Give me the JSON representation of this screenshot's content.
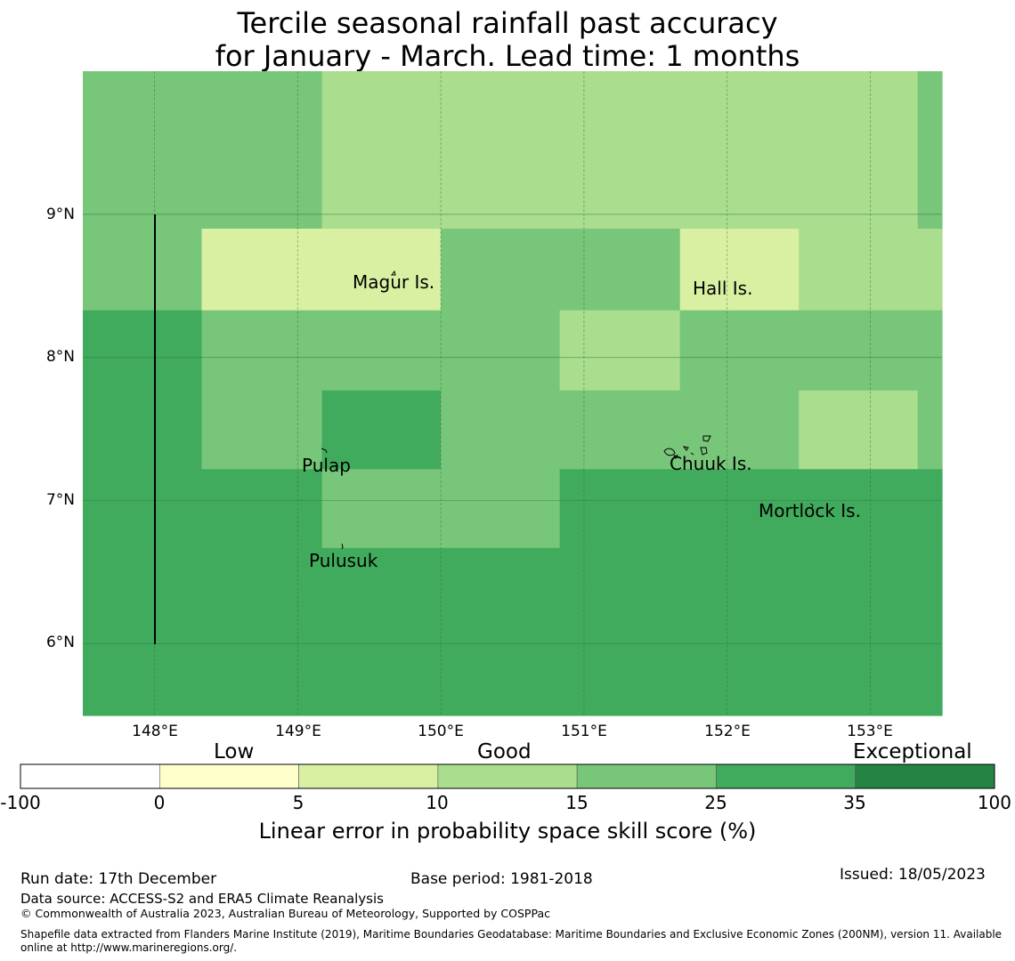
{
  "title_line1": "Tercile seasonal rainfall past accuracy",
  "title_line2": "for January - March. Lead time: 1 months",
  "map": {
    "lat_labels": [
      "9°N",
      "8°N",
      "7°N",
      "6°N"
    ],
    "lon_labels": [
      "148°E",
      "149°E",
      "150°E",
      "151°E",
      "152°E",
      "153°E"
    ],
    "places": {
      "magur": "Magur Is.",
      "hall": "Hall Is.",
      "pulap": "Pulap",
      "chuuk": "Chuuk Is.",
      "mortlock": "Mortlock Is.",
      "pulusuk": "Pulusuk"
    },
    "skill_grid": {
      "description_rows_north_to_south": true,
      "palette": {
        "A": "#aadd8e",
        "B": "#78c679",
        "C": "#41ab5d",
        "D": "#d9f0a3"
      },
      "rows": [
        {
          "lat_top": 10.0,
          "lat_bottom": 8.9,
          "segments": [
            [
              147.5,
              149.17,
              "B"
            ],
            [
              149.17,
              153.33,
              "A"
            ],
            [
              153.33,
              153.5,
              "B"
            ]
          ]
        },
        {
          "lat_top": 8.9,
          "lat_bottom": 8.33,
          "segments": [
            [
              147.5,
              148.33,
              "B"
            ],
            [
              148.33,
              150.0,
              "D"
            ],
            [
              150.0,
              151.67,
              "B"
            ],
            [
              151.67,
              152.5,
              "D"
            ],
            [
              152.5,
              153.5,
              "A"
            ]
          ]
        },
        {
          "lat_top": 8.33,
          "lat_bottom": 7.77,
          "segments": [
            [
              147.5,
              148.33,
              "C"
            ],
            [
              148.33,
              150.83,
              "B"
            ],
            [
              150.83,
              151.67,
              "A"
            ],
            [
              151.67,
              153.5,
              "B"
            ]
          ]
        },
        {
          "lat_top": 7.77,
          "lat_bottom": 7.22,
          "segments": [
            [
              147.5,
              148.33,
              "C"
            ],
            [
              148.33,
              149.17,
              "B"
            ],
            [
              149.17,
              150.0,
              "C"
            ],
            [
              150.0,
              152.5,
              "B"
            ],
            [
              152.5,
              153.33,
              "A"
            ],
            [
              153.33,
              153.5,
              "B"
            ]
          ]
        },
        {
          "lat_top": 7.22,
          "lat_bottom": 6.67,
          "segments": [
            [
              147.5,
              149.17,
              "C"
            ],
            [
              149.17,
              150.83,
              "B"
            ],
            [
              150.83,
              153.5,
              "C"
            ]
          ]
        },
        {
          "lat_top": 6.67,
          "lat_bottom": 5.5,
          "segments": [
            [
              147.5,
              153.5,
              "C"
            ]
          ]
        }
      ]
    }
  },
  "legend": {
    "categories": {
      "low": "Low",
      "good": "Good",
      "exceptional": "Exceptional"
    },
    "ticks": [
      "-100",
      "0",
      "5",
      "10",
      "15",
      "25",
      "35",
      "100"
    ],
    "colors": [
      "#ffffff",
      "#ffffcc",
      "#d9f0a3",
      "#aadd8e",
      "#78c679",
      "#41ab5d",
      "#238443"
    ],
    "title": "Linear error in probability space skill score (%)"
  },
  "footer": {
    "run_date": "Run date: 17th December",
    "base_period": "Base period: 1981-2018",
    "issued": "Issued: 18/05/2023",
    "data_source": "Data source: ACCESS-S2 and ERA5 Climate Reanalysis",
    "copyright": "© Commonwealth of Australia 2023, Australian Bureau of Meteorology, Supported by COSPPac",
    "shapefile_line1": "Shapefile data extracted from Flanders Marine Institute (2019), Maritime Boundaries Geodatabase: Maritime Boundaries and Exclusive Economic Zones (200NM), version 11. Available",
    "shapefile_line2": "online at http://www.marineregions.org/."
  }
}
